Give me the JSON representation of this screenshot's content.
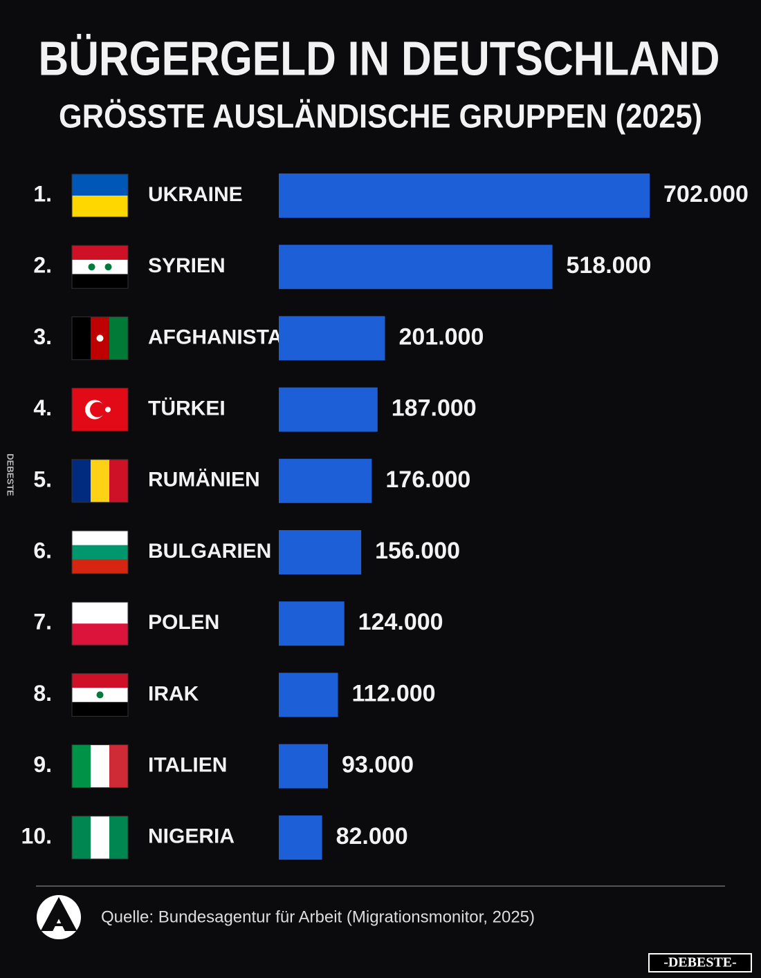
{
  "chart_data": {
    "type": "bar",
    "orientation": "horizontal",
    "title": "BÜRGERGELD IN DEUTSCHLAND",
    "subtitle": "GRÖSSTE AUSLÄNDISCHE GRUPPEN (2025)",
    "ranks": [
      "1.",
      "2.",
      "3.",
      "4.",
      "5.",
      "6.",
      "7.",
      "8.",
      "9.",
      "10."
    ],
    "categories": [
      "UKRAINE",
      "SYRIEN",
      "AFGHANISTAN",
      "TÜRKEI",
      "RUMÄNIEN",
      "BULGARIEN",
      "POLEN",
      "IRAK",
      "ITALIEN",
      "NIGERIA"
    ],
    "values": [
      702000,
      518000,
      201000,
      187000,
      176000,
      156000,
      124000,
      112000,
      93000,
      82000
    ],
    "value_labels": [
      "702.000",
      "518.000",
      "201.000",
      "187.000",
      "176.000",
      "156.000",
      "124.000",
      "112.000",
      "93.000",
      "82.000"
    ],
    "color": "#1d5fd6",
    "source": "Quelle: Bundesagentur für Arbeit (Migrationsmonitor, 2025)"
  },
  "watermark": {
    "side": "DEBESTE",
    "corner": "-DEBESTE-"
  }
}
